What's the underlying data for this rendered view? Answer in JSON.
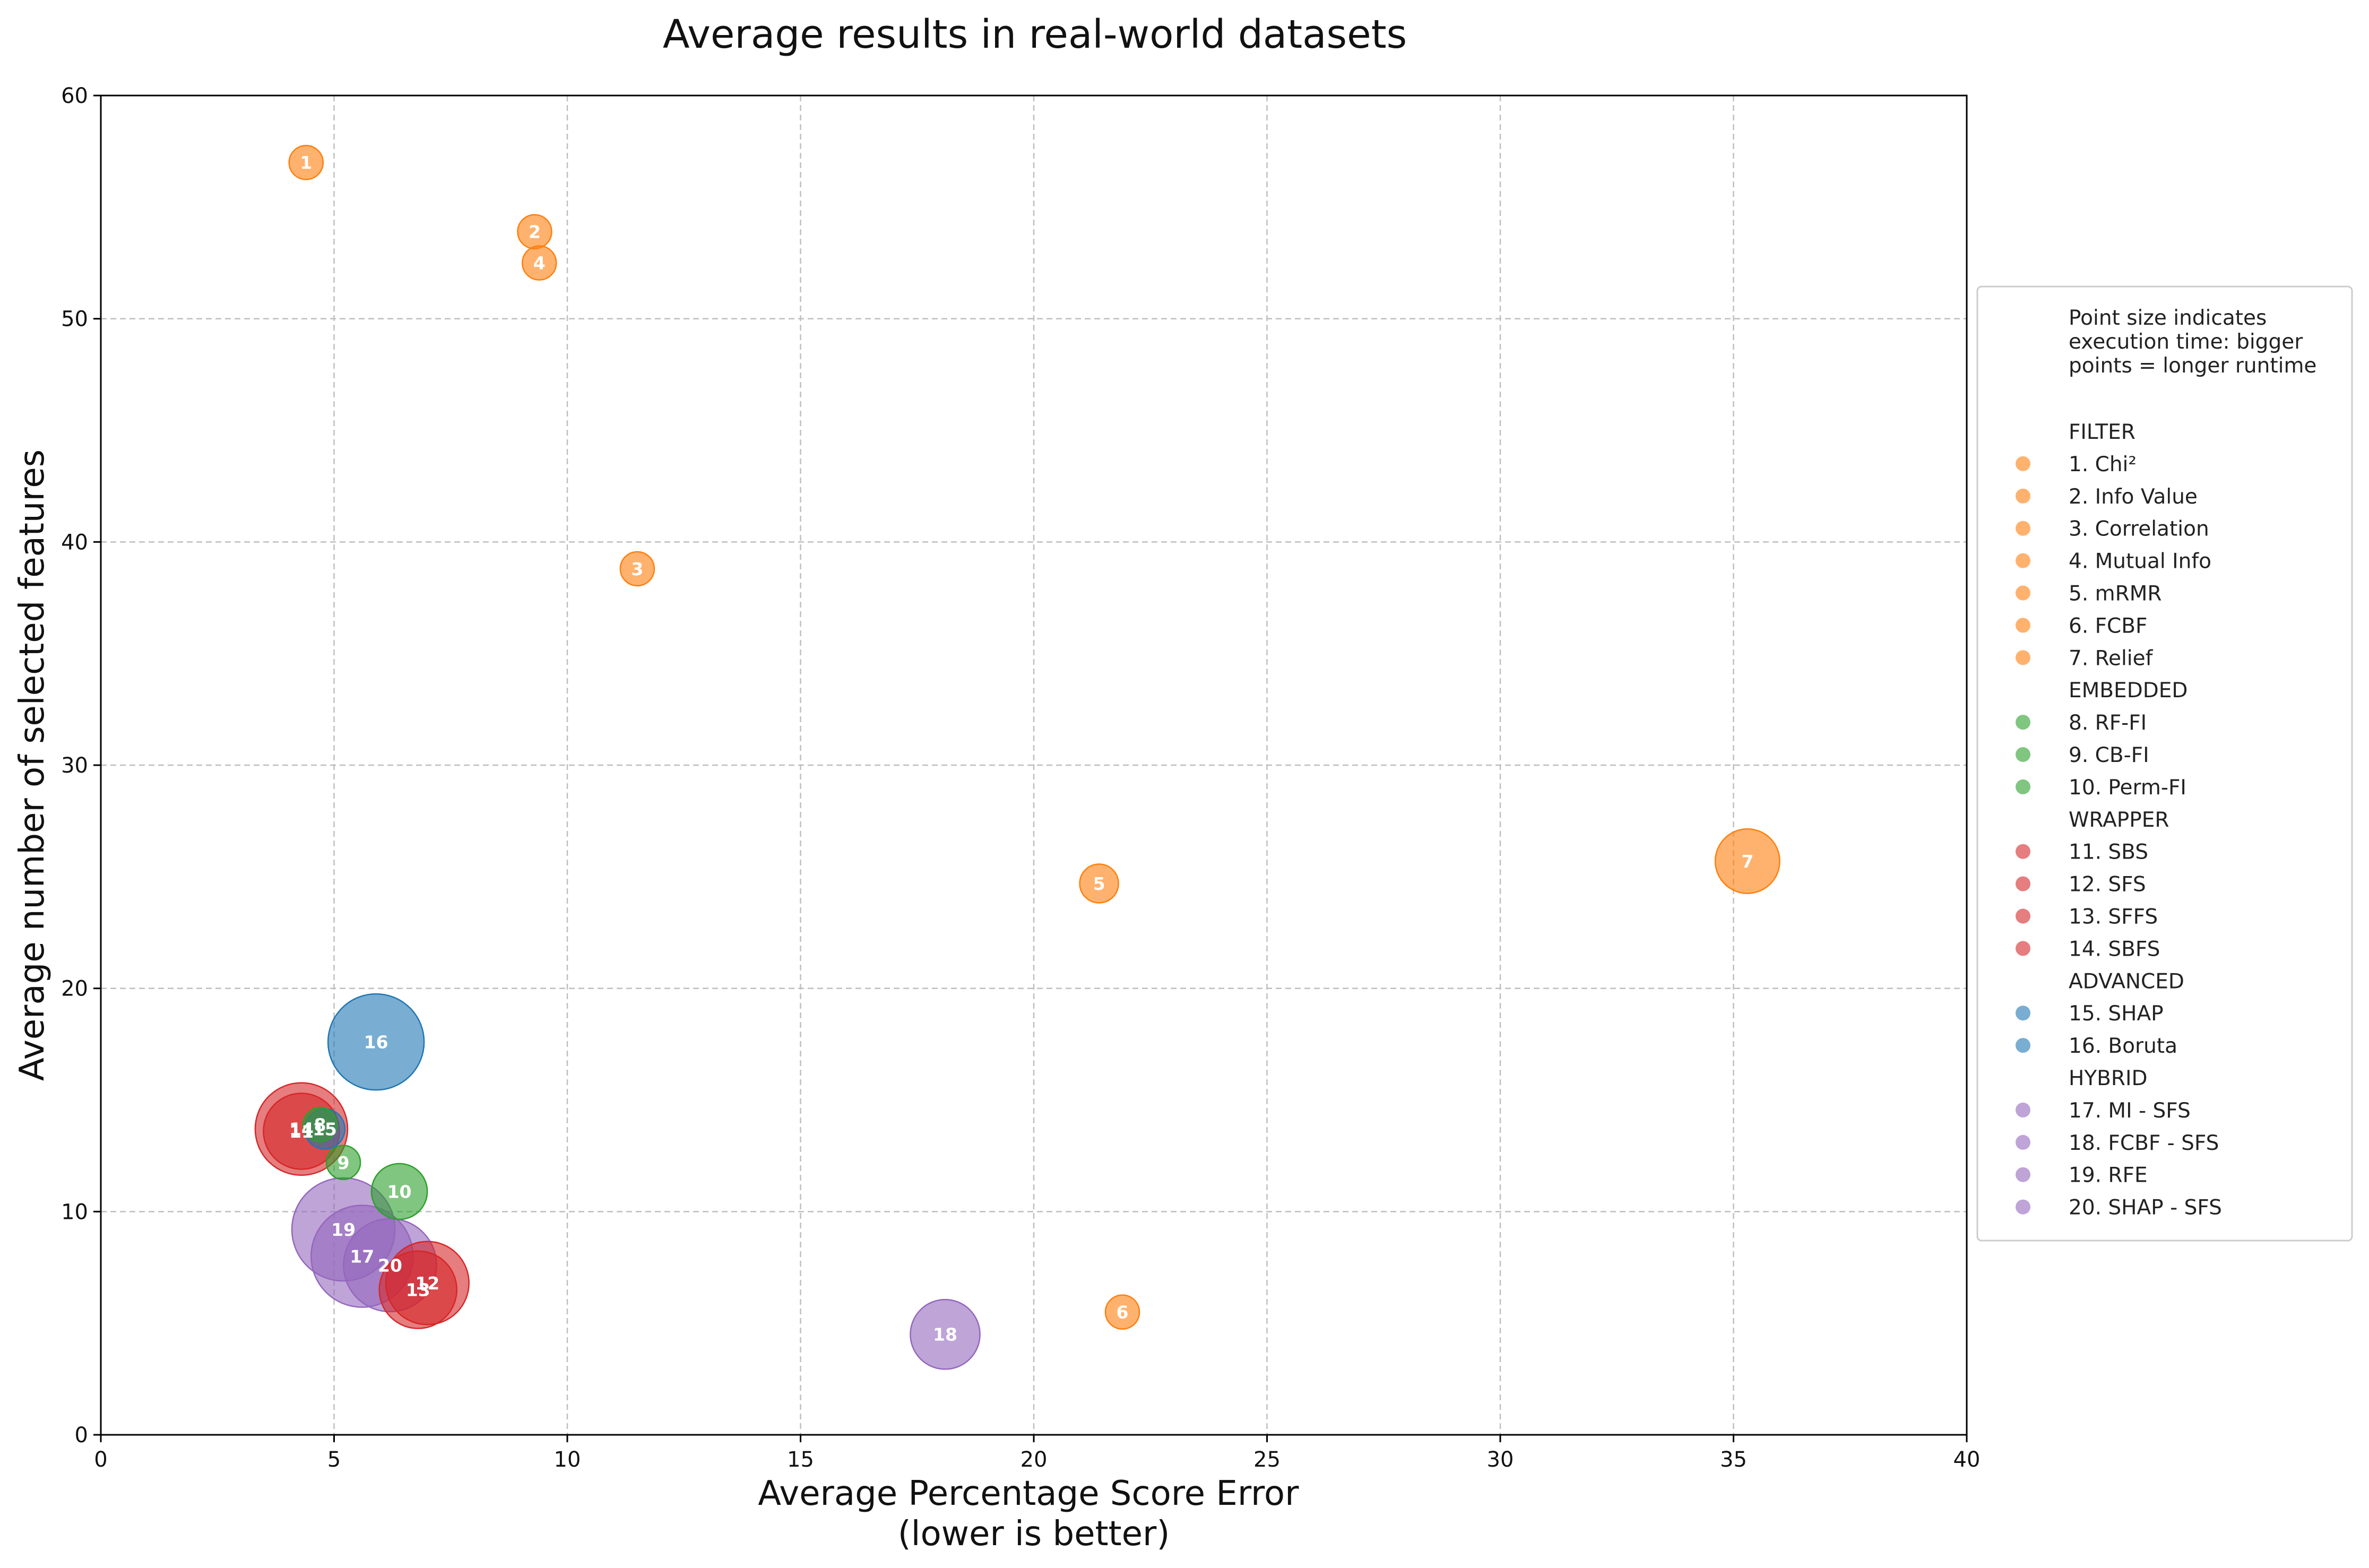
{
  "chart_data": {
    "type": "scatter",
    "title": "Average results in real-world datasets",
    "xlabel": [
      "Average Percentage Score Error",
      "(lower is better)"
    ],
    "ylabel": "Average number of selected features",
    "xlim": [
      0,
      40
    ],
    "ylim": [
      0,
      60
    ],
    "xticks": [
      0,
      5,
      10,
      15,
      20,
      25,
      30,
      35,
      40
    ],
    "yticks": [
      0,
      10,
      20,
      30,
      40,
      50,
      60
    ],
    "grid": true,
    "size_encoding": "execution time",
    "legend": {
      "placement": "outside right",
      "note": "Point size indicates\nexecution time: bigger\npoints = longer runtime",
      "groups": [
        {
          "name": "FILTER",
          "color": "#ff7f0e",
          "items": [
            "1. Chi²",
            "2. Info Value",
            "3. Correlation",
            "4. Mutual Info",
            "5. mRMR",
            "6. FCBF",
            "7. Relief"
          ]
        },
        {
          "name": "EMBEDDED",
          "color": "#2ca02c",
          "items": [
            "8. RF-FI",
            "9. CB-FI",
            "10. Perm-FI"
          ]
        },
        {
          "name": "WRAPPER",
          "color": "#d62728",
          "items": [
            "11. SBS",
            "12. SFS",
            "13. SFFS",
            "14. SBFS"
          ]
        },
        {
          "name": "ADVANCED",
          "color": "#1f77b4",
          "items": [
            "15. SHAP",
            "16. Boruta"
          ]
        },
        {
          "name": "HYBRID",
          "color": "#9467bd",
          "items": [
            "17. MI - SFS",
            "18. FCBF - SFS",
            "19. RFE",
            "20. SHAP - SFS"
          ]
        }
      ]
    },
    "points": [
      {
        "id": "1",
        "group": "FILTER",
        "x": 4.4,
        "y": 57.0,
        "size": 1.0
      },
      {
        "id": "2",
        "group": "FILTER",
        "x": 9.3,
        "y": 53.9,
        "size": 1.0
      },
      {
        "id": "3",
        "group": "FILTER",
        "x": 11.5,
        "y": 38.8,
        "size": 1.0
      },
      {
        "id": "4",
        "group": "FILTER",
        "x": 9.4,
        "y": 52.5,
        "size": 1.0
      },
      {
        "id": "5",
        "group": "FILTER",
        "x": 21.4,
        "y": 24.7,
        "size": 1.3
      },
      {
        "id": "6",
        "group": "FILTER",
        "x": 21.9,
        "y": 5.5,
        "size": 1.0
      },
      {
        "id": "7",
        "group": "FILTER",
        "x": 35.3,
        "y": 25.7,
        "size": 3.6
      },
      {
        "id": "8",
        "group": "EMBEDDED",
        "x": 4.7,
        "y": 13.9,
        "size": 1.0
      },
      {
        "id": "9",
        "group": "EMBEDDED",
        "x": 5.2,
        "y": 12.2,
        "size": 1.0
      },
      {
        "id": "10",
        "group": "EMBEDDED",
        "x": 6.4,
        "y": 10.9,
        "size": 2.7
      },
      {
        "id": "11",
        "group": "WRAPPER",
        "x": 4.3,
        "y": 13.6,
        "size": 5.0
      },
      {
        "id": "12",
        "group": "WRAPPER",
        "x": 7.0,
        "y": 6.8,
        "size": 6.0
      },
      {
        "id": "13",
        "group": "WRAPPER",
        "x": 6.8,
        "y": 6.5,
        "size": 5.2
      },
      {
        "id": "14",
        "group": "WRAPPER",
        "x": 4.3,
        "y": 13.7,
        "size": 7.4
      },
      {
        "id": "15",
        "group": "ADVANCED",
        "x": 4.8,
        "y": 13.7,
        "size": 1.4
      },
      {
        "id": "16",
        "group": "ADVANCED",
        "x": 5.9,
        "y": 17.6,
        "size": 8.0
      },
      {
        "id": "17",
        "group": "HYBRID",
        "x": 5.6,
        "y": 8.0,
        "size": 9.0
      },
      {
        "id": "18",
        "group": "HYBRID",
        "x": 18.1,
        "y": 4.5,
        "size": 4.2
      },
      {
        "id": "19",
        "group": "HYBRID",
        "x": 5.2,
        "y": 9.2,
        "size": 9.2
      },
      {
        "id": "20",
        "group": "HYBRID",
        "x": 6.2,
        "y": 7.6,
        "size": 7.5
      }
    ]
  }
}
